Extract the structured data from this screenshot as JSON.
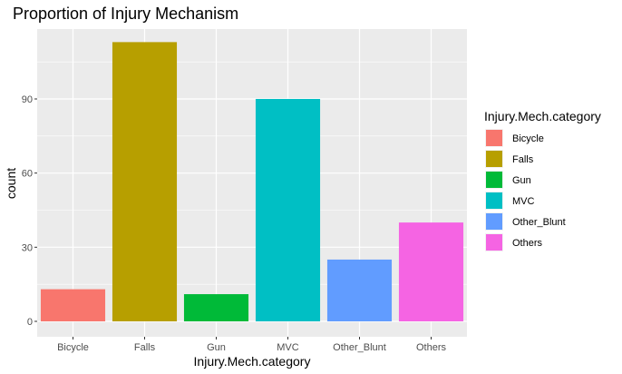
{
  "chart_data": {
    "type": "bar",
    "title": "Proportion of Injury Mechanism",
    "xlabel": "Injury.Mech.category",
    "ylabel": "count",
    "categories": [
      "Bicycle",
      "Falls",
      "Gun",
      "MVC",
      "Other_Blunt",
      "Others"
    ],
    "values": [
      13,
      113,
      11,
      90,
      25,
      40
    ],
    "colors": [
      "#F8766D",
      "#B79F00",
      "#00BA38",
      "#00BFC4",
      "#619CFF",
      "#F564E3"
    ],
    "ylim": [
      0,
      119
    ],
    "yticks": [
      0,
      30,
      60,
      90
    ],
    "grid": true,
    "panel_background": "#EBEBEB",
    "legend": {
      "title": "Injury.Mech.category",
      "position": "right",
      "entries": [
        "Bicycle",
        "Falls",
        "Gun",
        "MVC",
        "Other_Blunt",
        "Others"
      ]
    }
  }
}
